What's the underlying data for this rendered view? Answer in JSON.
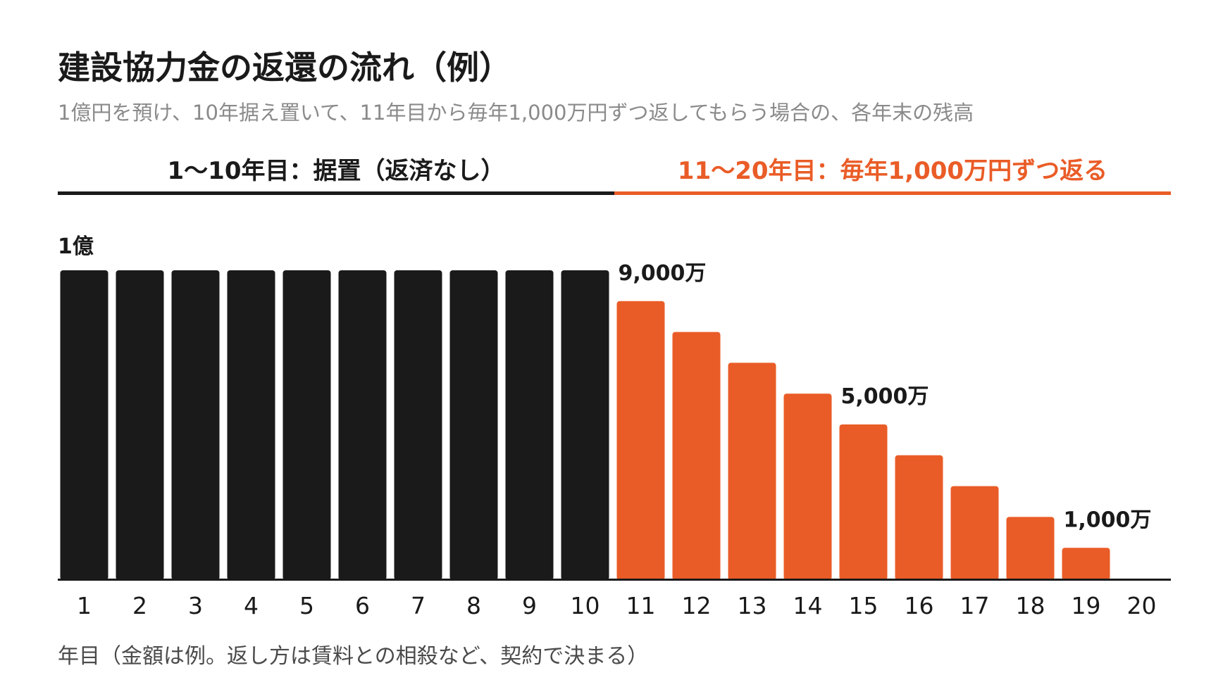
{
  "title": "建設協力金の返還の流れ（例）",
  "subtitle": "1億円を預け、10年据え置いて、11年目から毎年1,000万円ずつ返してもらう場合の、各年末の残高",
  "phases": [
    {
      "label": "1〜10年目：据置（返済なし）",
      "color": "#1a1a1a"
    },
    {
      "label": "11〜20年目：毎年1,000万円ずつ返る",
      "color": "#ea5c27"
    }
  ],
  "caption": "年目（金額は例。返し方は賃料との相殺など、契約で決まる）",
  "chart_data": {
    "type": "bar",
    "categories": [
      "1",
      "2",
      "3",
      "4",
      "5",
      "6",
      "7",
      "8",
      "9",
      "10",
      "11",
      "12",
      "13",
      "14",
      "15",
      "16",
      "17",
      "18",
      "19",
      "20"
    ],
    "values": [
      10000,
      10000,
      10000,
      10000,
      10000,
      10000,
      10000,
      10000,
      10000,
      10000,
      9000,
      8000,
      7000,
      6000,
      5000,
      4000,
      3000,
      2000,
      1000,
      0
    ],
    "unit": "万円",
    "ylim": [
      0,
      10000
    ],
    "xlabel": "年目",
    "colors": {
      "deferred": "#1a1a1a",
      "repayment": "#ea5c27"
    },
    "deferred_years": 10,
    "annotations": [
      {
        "category": "1",
        "text": "1億"
      },
      {
        "category": "11",
        "text": "9,000万"
      },
      {
        "category": "15",
        "text": "5,000万"
      },
      {
        "category": "19",
        "text": "1,000万"
      }
    ],
    "grid": false,
    "legend": "none"
  }
}
